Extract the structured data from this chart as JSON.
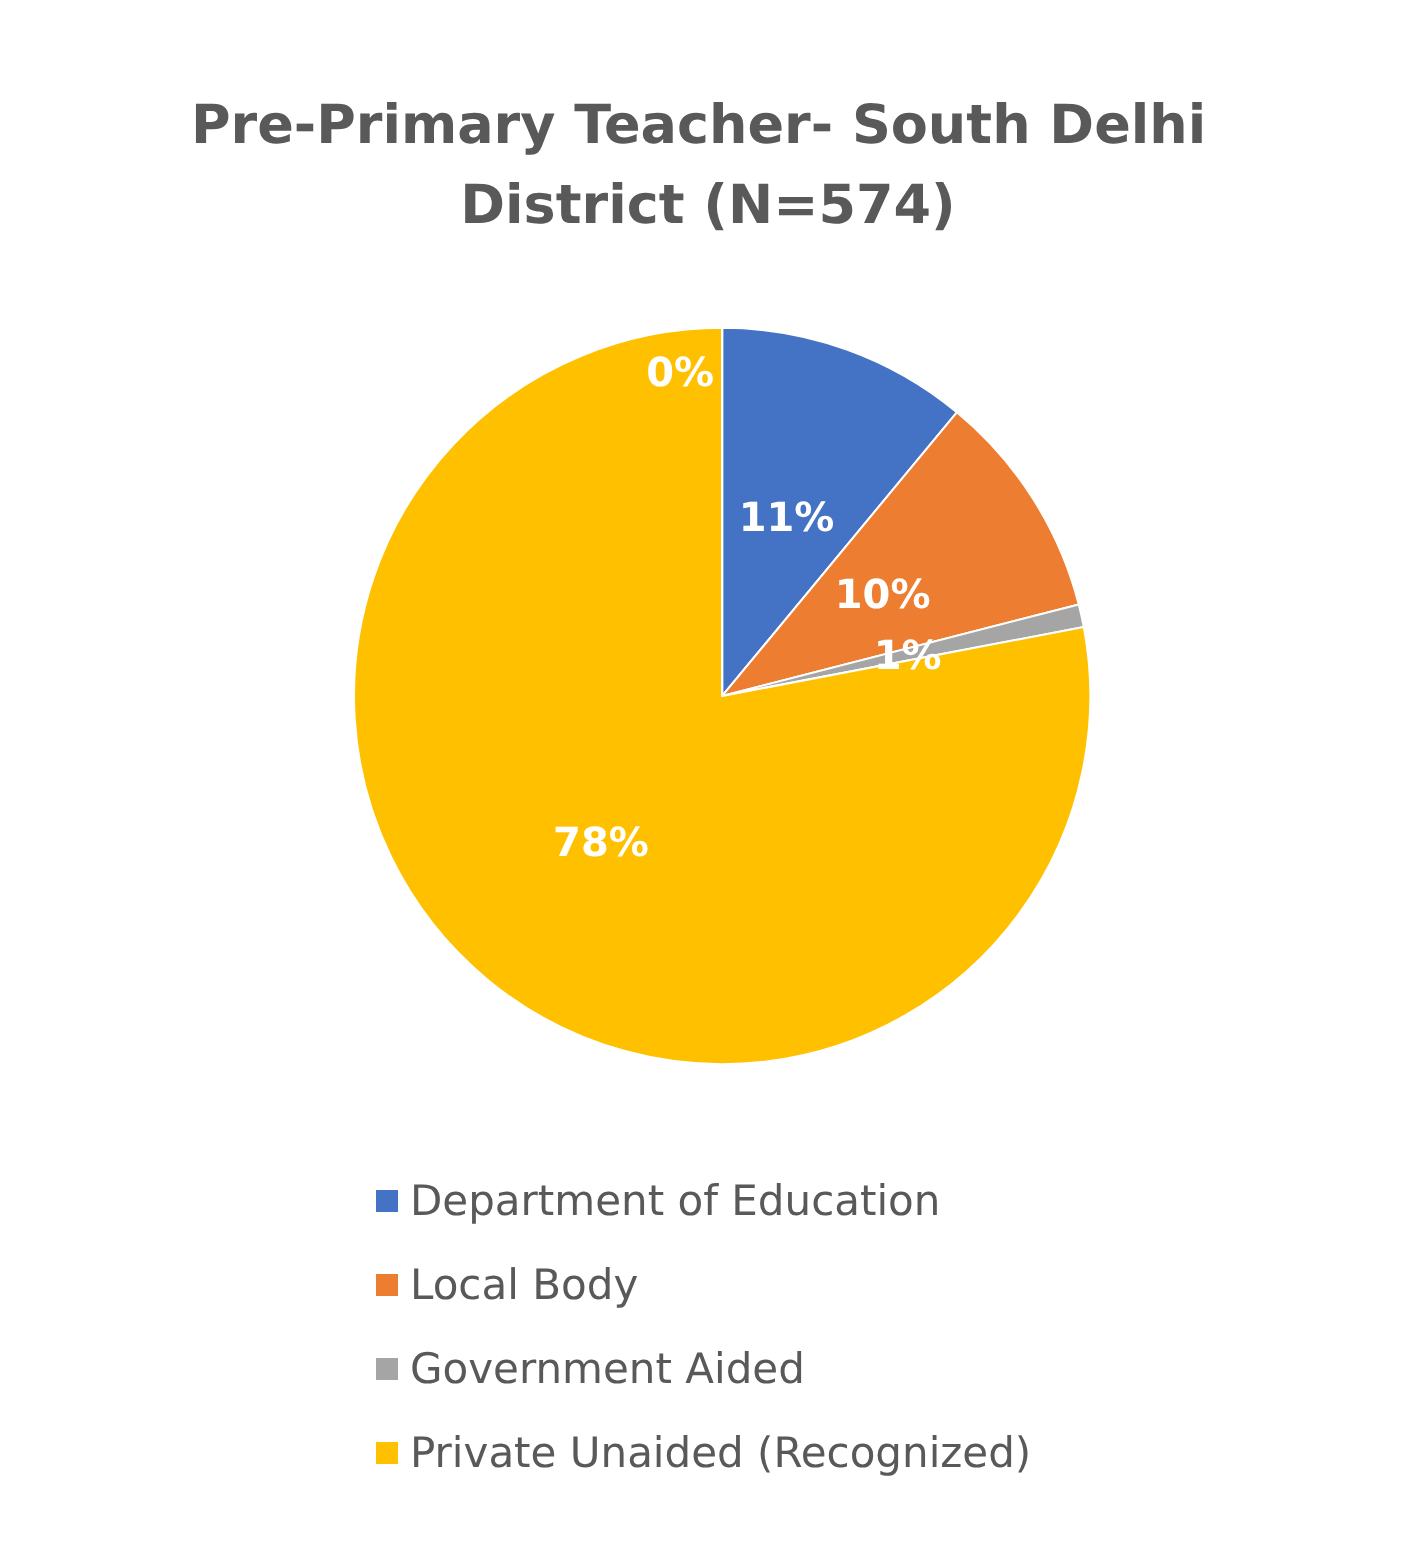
{
  "chart_data": {
    "type": "pie",
    "title": "Pre-Primary Teacher- South Delhi District (N=574)",
    "categories": [
      "Department of Education",
      "Local Body",
      "Government Aided",
      "Private Unaided (Recognized)",
      null
    ],
    "values": [
      11,
      10,
      1,
      78,
      0
    ],
    "colors": [
      "#4472c4",
      "#ed7d31",
      "#a5a5a5",
      "#ffc000",
      "#5b9bd5"
    ],
    "value_labels": [
      "11%",
      "10%",
      "1%",
      "78%",
      "0%"
    ],
    "legend": "bottom"
  }
}
